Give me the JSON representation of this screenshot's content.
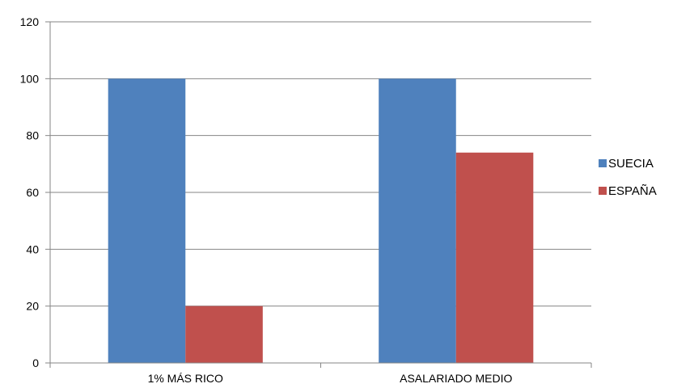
{
  "chart_data": {
    "type": "bar",
    "categories": [
      "1% MÁS RICO",
      "ASALARIADO MEDIO"
    ],
    "series": [
      {
        "name": "SUECIA",
        "values": [
          100,
          100
        ],
        "color": "#4F81BD"
      },
      {
        "name": "ESPAÑA",
        "values": [
          20,
          74
        ],
        "color": "#C0504D"
      }
    ],
    "ylim": [
      0,
      120
    ],
    "yticks": [
      0,
      20,
      40,
      60,
      80,
      100,
      120
    ],
    "grid": true,
    "legend_position": "right"
  }
}
